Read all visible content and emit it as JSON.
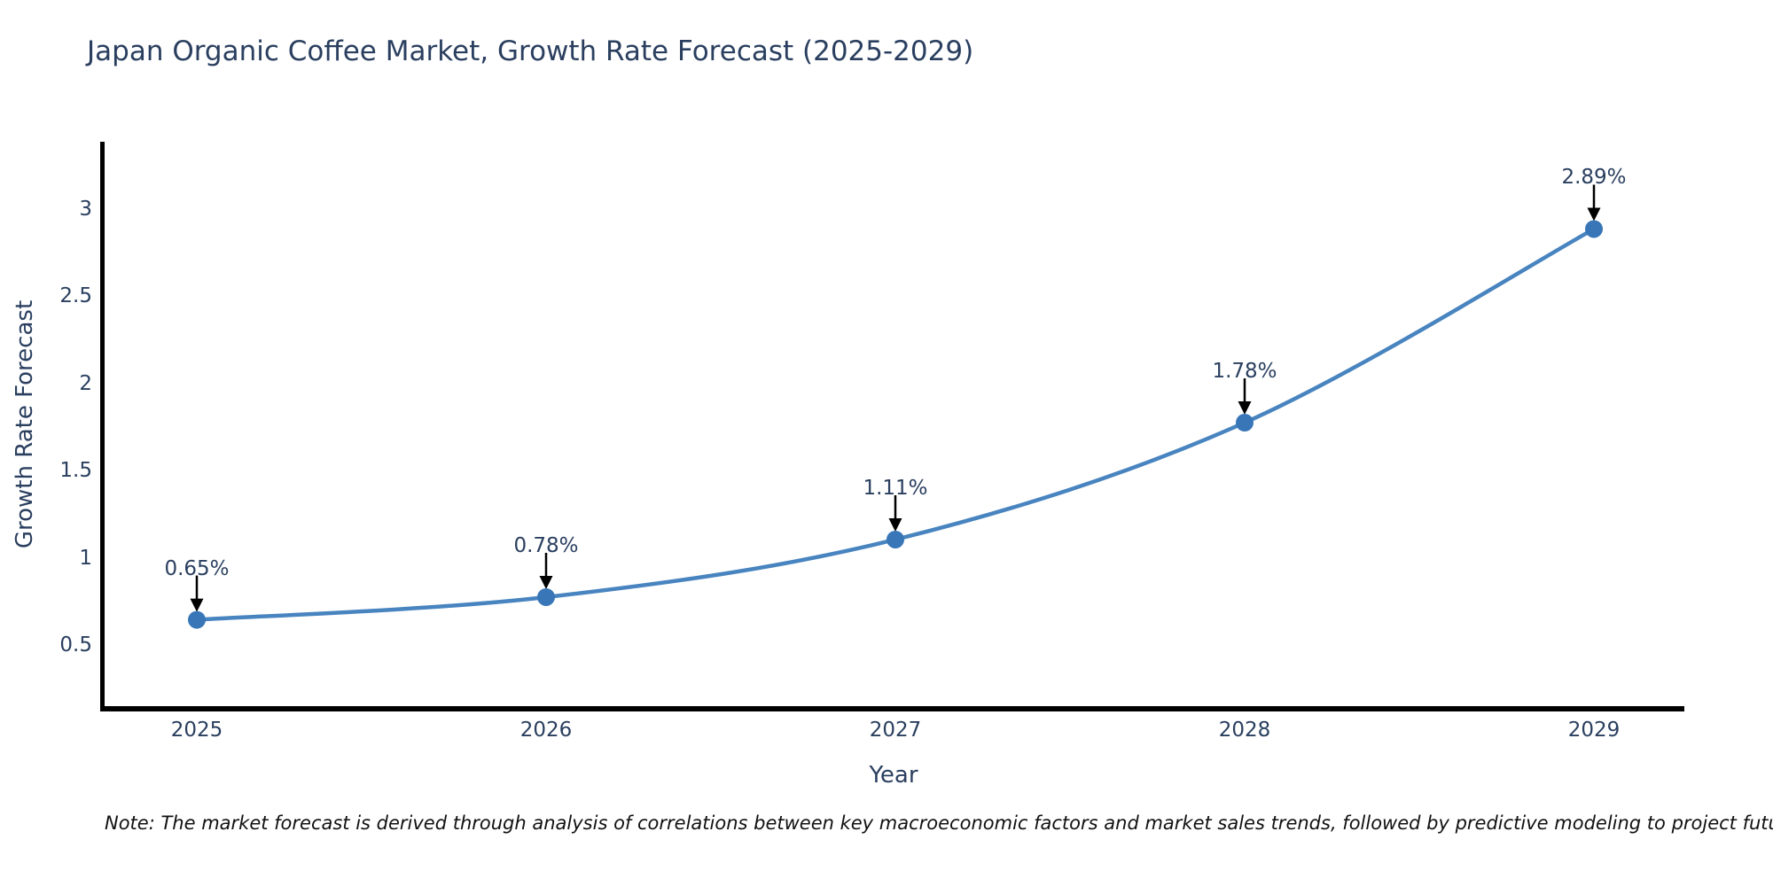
{
  "note": "Note: The market forecast is derived through analysis of correlations between key macroeconomic factors and market sales trends, followed by predictive modeling to project future sales",
  "chart_data": {
    "type": "line",
    "title": "Japan Organic Coffee Market, Growth Rate Forecast (2025-2029)",
    "xlabel": "Year",
    "ylabel": "Growth Rate Forecast",
    "categories": [
      "2025",
      "2026",
      "2027",
      "2028",
      "2029"
    ],
    "series": [
      {
        "name": "Growth Rate Forecast",
        "values": [
          0.65,
          0.78,
          1.11,
          1.78,
          2.89
        ]
      }
    ],
    "point_labels": [
      "0.65%",
      "0.78%",
      "1.11%",
      "1.78%",
      "2.89%"
    ],
    "y_ticks": [
      "0.5",
      "1",
      "1.5",
      "2",
      "2.5",
      "3"
    ],
    "ylim": [
      0.14,
      3.39
    ],
    "line_shape": "spline",
    "grid": false,
    "legend": "none",
    "markers": true,
    "colors": {
      "line": "#4884bf",
      "marker": "#3876b8",
      "axis": "#000000",
      "text": "#2a3f5f",
      "annotation_arrow": "#000000",
      "background": "#ffffff"
    }
  }
}
